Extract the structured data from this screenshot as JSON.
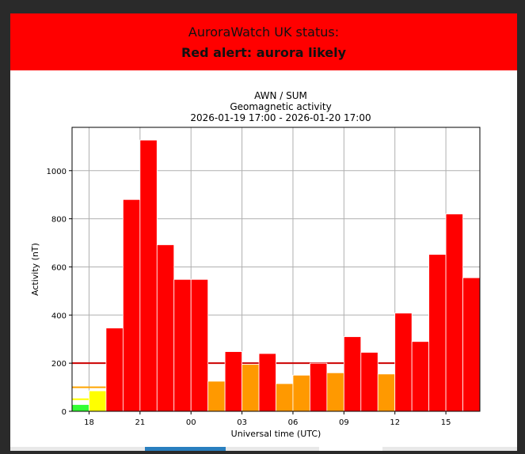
{
  "banner": {
    "line1": "AuroraWatch UK status:",
    "line2": "Red alert: aurora likely",
    "color": "#ff0000"
  },
  "chart_data": {
    "type": "bar",
    "title_lines": [
      "AWN / SUM",
      "Geomagnetic activity",
      "2026-01-19 17:00 - 2026-01-20 17:00"
    ],
    "xlabel": "Universal time (UTC)",
    "ylabel": "Activity (nT)",
    "x_tick_labels": [
      "18",
      "21",
      "00",
      "03",
      "06",
      "09",
      "12",
      "15"
    ],
    "x_tick_hours": [
      18,
      21,
      24,
      27,
      30,
      33,
      36,
      39
    ],
    "x_range_hours": [
      17,
      41
    ],
    "y_ticks": [
      0,
      200,
      400,
      600,
      800,
      1000
    ],
    "ylim": [
      0,
      1180
    ],
    "grid": true,
    "thresholds": [
      {
        "name": "green",
        "value": 50,
        "color": "#ffff00"
      },
      {
        "name": "yellow",
        "value": 100,
        "color": "#ffa500"
      },
      {
        "name": "amber",
        "value": 200,
        "color": "#cc0000"
      }
    ],
    "bars": [
      {
        "hour": 17,
        "value": 28,
        "color": "#33ff33"
      },
      {
        "hour": 18,
        "value": 85,
        "color": "#ffff00"
      },
      {
        "hour": 19,
        "value": 346,
        "color": "#ff0000"
      },
      {
        "hour": 20,
        "value": 880,
        "color": "#ff0000"
      },
      {
        "hour": 21,
        "value": 1127,
        "color": "#ff0000"
      },
      {
        "hour": 22,
        "value": 692,
        "color": "#ff0000"
      },
      {
        "hour": 23,
        "value": 548,
        "color": "#ff0000"
      },
      {
        "hour": 24,
        "value": 548,
        "color": "#ff0000"
      },
      {
        "hour": 25,
        "value": 125,
        "color": "#ff9900"
      },
      {
        "hour": 26,
        "value": 248,
        "color": "#ff0000"
      },
      {
        "hour": 27,
        "value": 195,
        "color": "#ff9900"
      },
      {
        "hour": 28,
        "value": 240,
        "color": "#ff0000"
      },
      {
        "hour": 29,
        "value": 115,
        "color": "#ff9900"
      },
      {
        "hour": 30,
        "value": 150,
        "color": "#ff9900"
      },
      {
        "hour": 31,
        "value": 200,
        "color": "#ff0000"
      },
      {
        "hour": 32,
        "value": 160,
        "color": "#ff9900"
      },
      {
        "hour": 33,
        "value": 310,
        "color": "#ff0000"
      },
      {
        "hour": 34,
        "value": 245,
        "color": "#ff0000"
      },
      {
        "hour": 35,
        "value": 155,
        "color": "#ff9900"
      },
      {
        "hour": 36,
        "value": 408,
        "color": "#ff0000"
      },
      {
        "hour": 37,
        "value": 290,
        "color": "#ff0000"
      },
      {
        "hour": 38,
        "value": 652,
        "color": "#ff0000"
      },
      {
        "hour": 39,
        "value": 820,
        "color": "#ff0000"
      },
      {
        "hour": 40,
        "value": 555,
        "color": "#ff0000"
      }
    ]
  }
}
